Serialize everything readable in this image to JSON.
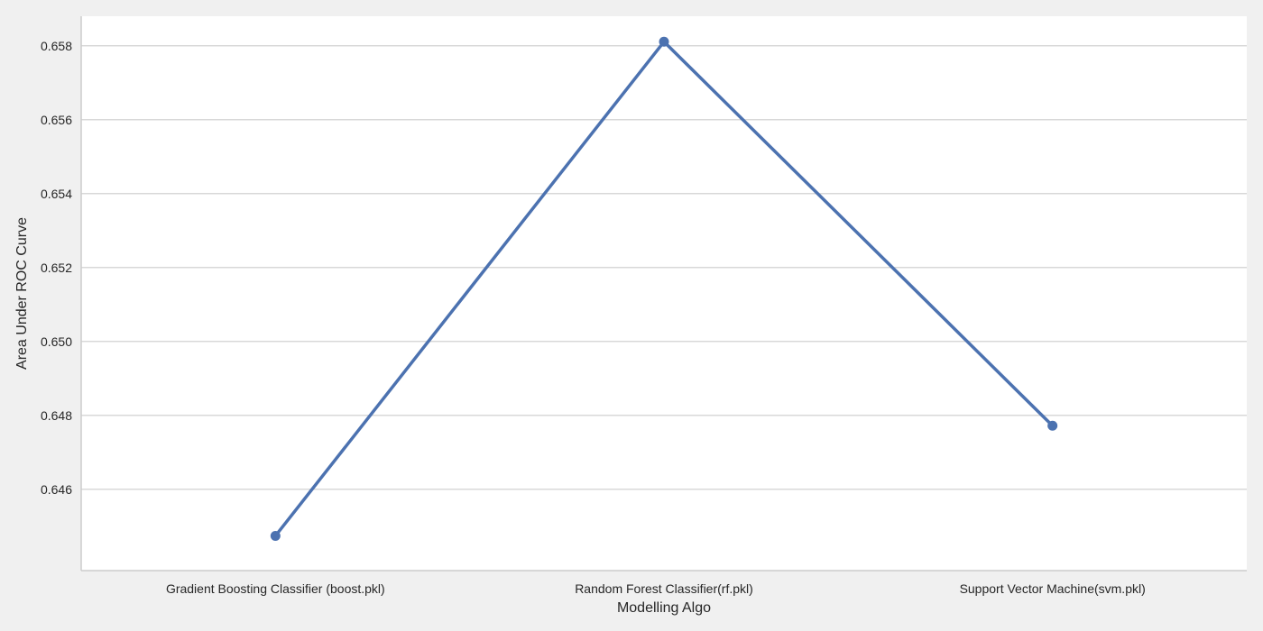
{
  "chart_data": {
    "type": "line",
    "title": "",
    "xlabel": "Modelling Algo",
    "ylabel": "Area Under ROC Curve",
    "categories": [
      "Gradient Boosting Classifier (boost.pkl)",
      "Random Forest Classifier(rf.pkl)",
      "Support Vector Machine(svm.pkl)"
    ],
    "series": [
      {
        "values": [
          0.64474,
          0.65811,
          0.64772
        ]
      }
    ],
    "yticks": [
      "0.646",
      "0.648",
      "0.650",
      "0.652",
      "0.654",
      "0.656",
      "0.658"
    ],
    "ylim": [
      0.6438,
      0.6588
    ],
    "grid": "horizontal",
    "legend": "none",
    "colors": {
      "line": "#4c72b0",
      "grid": "#cccccc",
      "plot_background": "#ffffff",
      "page_background": "#f0f0f0",
      "axis_spine": "#cccccc"
    }
  }
}
